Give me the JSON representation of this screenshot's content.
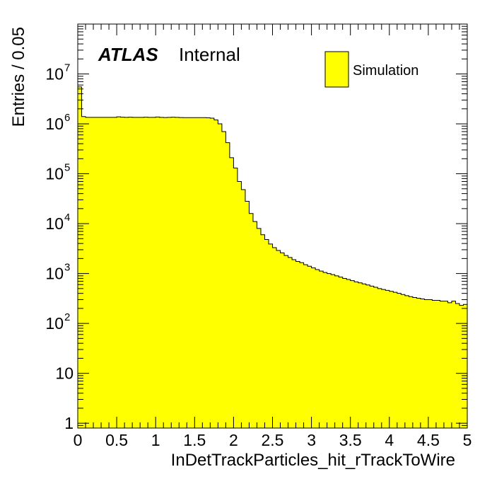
{
  "chart_data": {
    "type": "histogram",
    "brand": "ATLAS",
    "label": "Internal",
    "xlabel": "InDetTrackParticles_hit_rTrackToWire",
    "ylabel": "Entries / 0.05",
    "xlim": [
      0,
      5
    ],
    "ylim": [
      0.8,
      100000000
    ],
    "yscale": "log",
    "bin_width": 0.05,
    "x_ticks": [
      "0",
      "0.5",
      "1",
      "1.5",
      "2",
      "2.5",
      "3",
      "3.5",
      "4",
      "4.5",
      "5"
    ],
    "y_ticks": [
      {
        "value": 1,
        "base": "1",
        "exp": ""
      },
      {
        "value": 10,
        "base": "10",
        "exp": ""
      },
      {
        "value": 100,
        "base": "10",
        "exp": "2"
      },
      {
        "value": 1000,
        "base": "10",
        "exp": "3"
      },
      {
        "value": 10000,
        "base": "10",
        "exp": "4"
      },
      {
        "value": 100000,
        "base": "10",
        "exp": "5"
      },
      {
        "value": 1000000,
        "base": "10",
        "exp": "6"
      },
      {
        "value": 10000000,
        "base": "10",
        "exp": "7"
      }
    ],
    "series": [
      {
        "name": "Simulation",
        "color": "#ffff00",
        "edge_color": "#000000",
        "values": [
          5500000,
          1400000,
          1350000,
          1350000,
          1350000,
          1350000,
          1350000,
          1350000,
          1350000,
          1350000,
          1380000,
          1360000,
          1350000,
          1360000,
          1350000,
          1350000,
          1350000,
          1360000,
          1350000,
          1350000,
          1370000,
          1350000,
          1340000,
          1350000,
          1360000,
          1350000,
          1340000,
          1330000,
          1330000,
          1330000,
          1330000,
          1330000,
          1330000,
          1320000,
          1300000,
          1200000,
          1000000,
          700000,
          420000,
          210000,
          130000,
          70000,
          48000,
          28000,
          16000,
          11000,
          8000,
          6000,
          4800,
          3900,
          3300,
          2900,
          2600,
          2300,
          2100,
          1900,
          1750,
          1650,
          1500,
          1400,
          1300,
          1200,
          1120,
          1050,
          1000,
          950,
          900,
          850,
          800,
          760,
          720,
          680,
          650,
          620,
          590,
          560,
          530,
          500,
          480,
          460,
          440,
          420,
          400,
          380,
          360,
          345,
          330,
          320,
          310,
          300,
          300,
          290,
          290,
          280,
          280,
          260,
          280,
          250,
          230,
          240
        ]
      }
    ],
    "legend": {
      "position": "top-right",
      "entries": [
        "Simulation"
      ]
    }
  }
}
